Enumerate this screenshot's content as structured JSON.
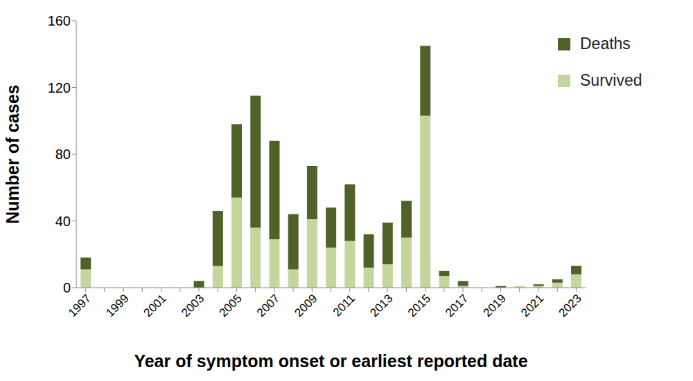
{
  "chart_data": {
    "type": "bar",
    "stacked": true,
    "xlabel": "Year of symptom onset or earliest reported date",
    "ylabel": "Number of cases",
    "categories": [
      "1997",
      null,
      "1999",
      null,
      "2001",
      null,
      "2003",
      null,
      "2005",
      null,
      "2007",
      null,
      "2009",
      null,
      "2011",
      null,
      "2013",
      null,
      "2015",
      null,
      "2017",
      null,
      "2019",
      null,
      "2021",
      null,
      "2023"
    ],
    "series": [
      {
        "name": "Deaths",
        "color": "#4f6228",
        "values": [
          7,
          0,
          0,
          0,
          0,
          0,
          4,
          33,
          44,
          79,
          59,
          33,
          32,
          24,
          34,
          20,
          25,
          22,
          42,
          3,
          3,
          0,
          1,
          0,
          1,
          2,
          5
        ]
      },
      {
        "name": "Survived",
        "color": "#c3d69b",
        "values": [
          11,
          0,
          0,
          0,
          0,
          0,
          0,
          13,
          54,
          36,
          29,
          11,
          41,
          24,
          28,
          12,
          14,
          30,
          103,
          7,
          1,
          0,
          0,
          1,
          1,
          3,
          8
        ]
      }
    ],
    "ylim": [
      0,
      160
    ],
    "yticks": [
      0,
      40,
      80,
      120,
      160
    ],
    "grid": false,
    "legend": "upper right"
  }
}
